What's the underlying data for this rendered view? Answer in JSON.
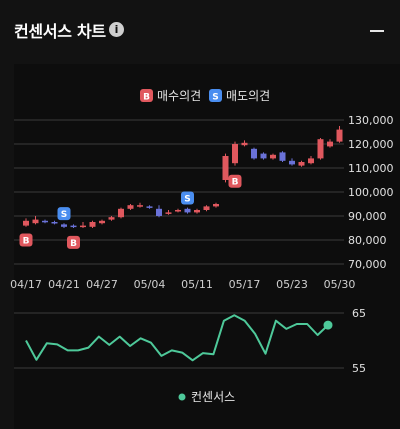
{
  "header": {
    "title": "컨센서스 차트",
    "info_icon": "info-icon",
    "collapse_icon": "minus-icon"
  },
  "colors": {
    "up": "#e0585e",
    "down": "#6a72d8",
    "buy_badge": "#e0585e",
    "sell_badge": "#4a8ef0",
    "consensus_line": "#4ec99a",
    "grid": "#3a3a3a",
    "background": "#121212"
  },
  "chart_data": [
    {
      "type": "candlestick",
      "legend": [
        {
          "badge": "B",
          "label": "매수의견"
        },
        {
          "badge": "S",
          "label": "매도의견"
        }
      ],
      "legend_position": "top-center",
      "y_ticks": [
        "130,000",
        "120,000",
        "110,000",
        "100,000",
        "90,000",
        "80,000",
        "70,000"
      ],
      "ylim": [
        70000,
        130000
      ],
      "x_tick_labels": [
        "04/17",
        "04/21",
        "04/27",
        "05/04",
        "05/11",
        "05/17",
        "05/23",
        "05/30"
      ],
      "x_tick_index": [
        0,
        4,
        8,
        13,
        18,
        23,
        28,
        33
      ],
      "grid": true,
      "candles": [
        {
          "o": 86000,
          "c": 88000,
          "h": 89000,
          "l": 85500
        },
        {
          "o": 87000,
          "c": 88500,
          "h": 90000,
          "l": 86500
        },
        {
          "o": 88000,
          "c": 87500,
          "h": 88500,
          "l": 87000
        },
        {
          "o": 87500,
          "c": 87000,
          "h": 88000,
          "l": 86500
        },
        {
          "o": 86500,
          "c": 85500,
          "h": 87000,
          "l": 85000
        },
        {
          "o": 86000,
          "c": 85500,
          "h": 86500,
          "l": 85000
        },
        {
          "o": 85500,
          "c": 86000,
          "h": 87500,
          "l": 85000
        },
        {
          "o": 85500,
          "c": 87500,
          "h": 88000,
          "l": 85000
        },
        {
          "o": 87000,
          "c": 88000,
          "h": 88500,
          "l": 86500
        },
        {
          "o": 88500,
          "c": 89500,
          "h": 90000,
          "l": 88000
        },
        {
          "o": 89500,
          "c": 93000,
          "h": 93500,
          "l": 89000
        },
        {
          "o": 93000,
          "c": 94500,
          "h": 95000,
          "l": 92500
        },
        {
          "o": 94000,
          "c": 94500,
          "h": 95500,
          "l": 93500
        },
        {
          "o": 94000,
          "c": 93500,
          "h": 94500,
          "l": 93000
        },
        {
          "o": 93000,
          "c": 90000,
          "h": 94500,
          "l": 89500
        },
        {
          "o": 91000,
          "c": 91500,
          "h": 92500,
          "l": 90500
        },
        {
          "o": 92000,
          "c": 92500,
          "h": 93000,
          "l": 91500
        },
        {
          "o": 93000,
          "c": 91500,
          "h": 93500,
          "l": 91000
        },
        {
          "o": 91500,
          "c": 92500,
          "h": 93000,
          "l": 91000
        },
        {
          "o": 92500,
          "c": 94000,
          "h": 94500,
          "l": 92000
        },
        {
          "o": 94000,
          "c": 95000,
          "h": 95500,
          "l": 93500
        },
        {
          "o": 105000,
          "c": 115000,
          "h": 116000,
          "l": 104000
        },
        {
          "o": 112000,
          "c": 120000,
          "h": 121000,
          "l": 111000
        },
        {
          "o": 119500,
          "c": 120500,
          "h": 121500,
          "l": 119000
        },
        {
          "o": 118000,
          "c": 114000,
          "h": 118500,
          "l": 113500
        },
        {
          "o": 116000,
          "c": 114000,
          "h": 116500,
          "l": 113500
        },
        {
          "o": 114000,
          "c": 115500,
          "h": 116000,
          "l": 113500
        },
        {
          "o": 116500,
          "c": 113000,
          "h": 117000,
          "l": 112500
        },
        {
          "o": 113000,
          "c": 111500,
          "h": 114000,
          "l": 111000
        },
        {
          "o": 111000,
          "c": 112500,
          "h": 113000,
          "l": 110500
        },
        {
          "o": 112000,
          "c": 114000,
          "h": 115000,
          "l": 111500
        },
        {
          "o": 114000,
          "c": 122000,
          "h": 122500,
          "l": 113500
        },
        {
          "o": 119000,
          "c": 121000,
          "h": 122000,
          "l": 118500
        },
        {
          "o": 121000,
          "c": 126000,
          "h": 127500,
          "l": 120500
        }
      ],
      "signals": [
        {
          "type": "buy",
          "badge": "B",
          "index": 0,
          "price": 80000
        },
        {
          "type": "sell",
          "badge": "S",
          "index": 4,
          "price": 91000
        },
        {
          "type": "buy",
          "badge": "B",
          "index": 5,
          "price": 79000
        },
        {
          "type": "sell",
          "badge": "S",
          "index": 17,
          "price": 97500
        },
        {
          "type": "buy",
          "badge": "B",
          "index": 22,
          "price": 104500
        }
      ]
    },
    {
      "type": "line",
      "series": [
        {
          "name": "컨센서스",
          "values": [
            60,
            56.5,
            59.5,
            59.3,
            58.2,
            58.2,
            58.7,
            60.7,
            59.2,
            60.7,
            59,
            60.4,
            59.6,
            57.2,
            58.2,
            57.8,
            56.4,
            57.7,
            57.5,
            63.6,
            64.6,
            63.6,
            61.2,
            57.6,
            63.6,
            62.1,
            63,
            63,
            61,
            62.8
          ]
        }
      ],
      "y_ticks": [
        "65",
        "55"
      ],
      "ylim": [
        53,
        67
      ],
      "grid": true,
      "legend_position": "bottom-center"
    }
  ]
}
